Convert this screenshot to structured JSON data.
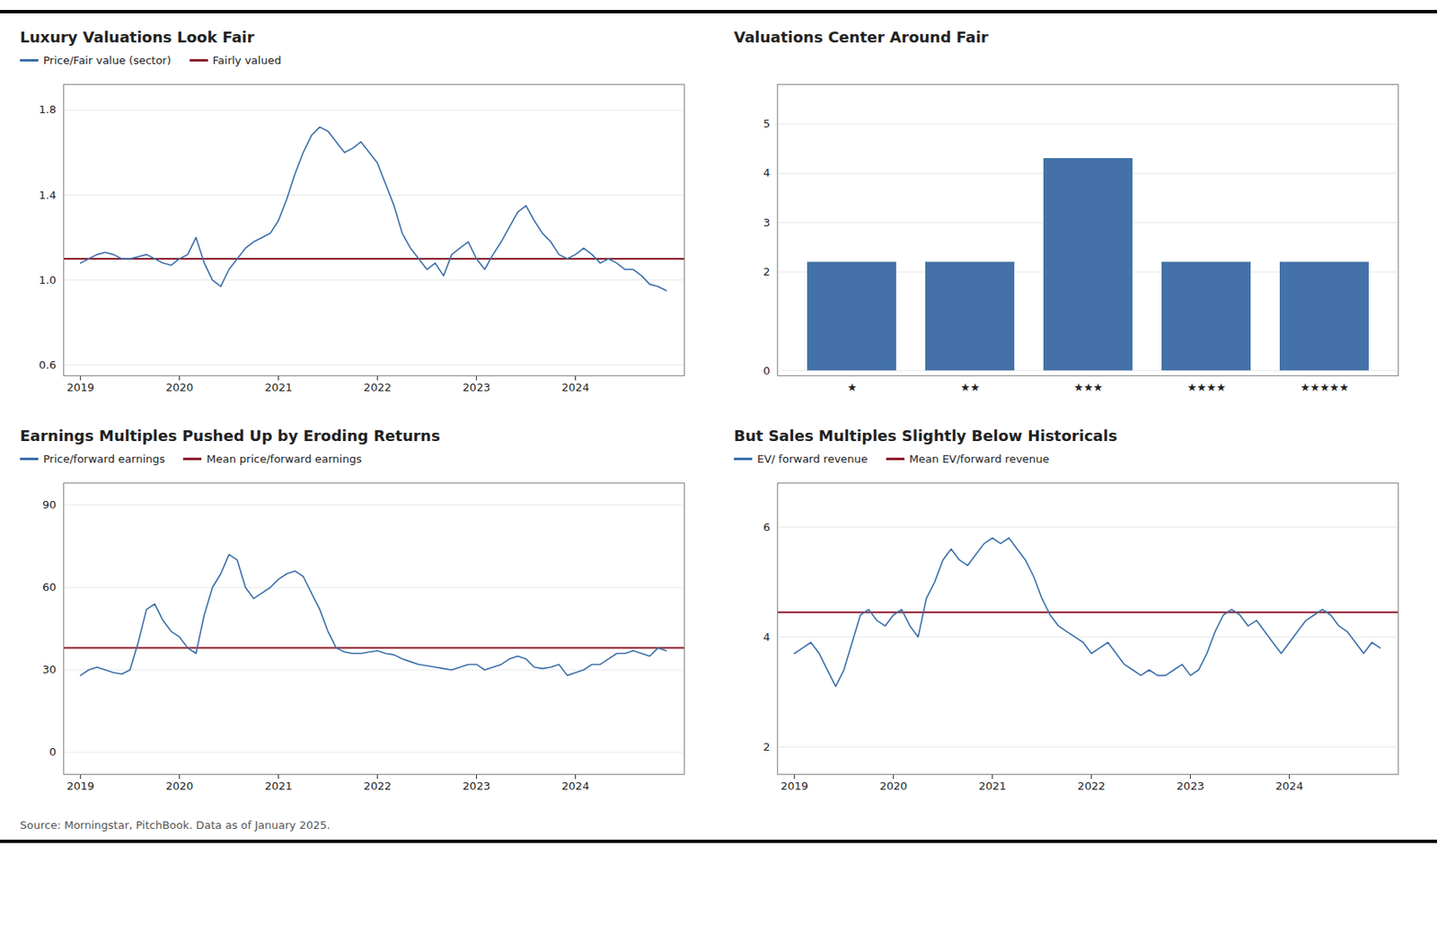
{
  "caption": "Source: Morningstar, PitchBook. Data as of January 2025.",
  "chart_data": [
    {
      "type": "line",
      "title": "Luxury Valuations Look Fair",
      "legend": "top",
      "grid": true,
      "xlim": [
        2018.83,
        2025.1
      ],
      "xticks": [
        2019,
        2020,
        2021,
        2022,
        2023,
        2024
      ],
      "ylim": [
        0.55,
        1.92
      ],
      "yticks": [
        0.6,
        {
          "value": 1.0,
          "label": "1.0"
        },
        1.4,
        1.8
      ],
      "x": [
        2019.0,
        2019.083,
        2019.167,
        2019.25,
        2019.333,
        2019.417,
        2019.5,
        2019.583,
        2019.667,
        2019.75,
        2019.833,
        2019.917,
        2020.0,
        2020.083,
        2020.167,
        2020.25,
        2020.333,
        2020.417,
        2020.5,
        2020.583,
        2020.667,
        2020.75,
        2020.833,
        2020.917,
        2021.0,
        2021.083,
        2021.167,
        2021.25,
        2021.333,
        2021.417,
        2021.5,
        2021.583,
        2021.667,
        2021.75,
        2021.833,
        2021.917,
        2022.0,
        2022.083,
        2022.167,
        2022.25,
        2022.333,
        2022.417,
        2022.5,
        2022.583,
        2022.667,
        2022.75,
        2022.833,
        2022.917,
        2023.0,
        2023.083,
        2023.167,
        2023.25,
        2023.333,
        2023.417,
        2023.5,
        2023.583,
        2023.667,
        2023.75,
        2023.833,
        2023.917,
        2024.0,
        2024.083,
        2024.167,
        2024.25,
        2024.333,
        2024.417,
        2024.5,
        2024.583,
        2024.667,
        2024.75,
        2024.833,
        2024.917
      ],
      "series": [
        {
          "name": "Price/Fair value (sector)",
          "color": "#3a6ea8",
          "values": [
            1.08,
            1.1,
            1.12,
            1.13,
            1.12,
            1.1,
            1.1,
            1.11,
            1.12,
            1.1,
            1.08,
            1.07,
            1.1,
            1.12,
            1.2,
            1.08,
            1.0,
            0.97,
            1.05,
            1.1,
            1.15,
            1.18,
            1.2,
            1.22,
            1.28,
            1.38,
            1.5,
            1.6,
            1.68,
            1.72,
            1.7,
            1.65,
            1.6,
            1.62,
            1.65,
            1.6,
            1.55,
            1.45,
            1.35,
            1.22,
            1.15,
            1.1,
            1.05,
            1.08,
            1.02,
            1.12,
            1.15,
            1.18,
            1.1,
            1.05,
            1.12,
            1.18,
            1.25,
            1.32,
            1.35,
            1.28,
            1.22,
            1.18,
            1.12,
            1.1,
            1.12,
            1.15,
            1.12,
            1.08,
            1.1,
            1.08,
            1.05,
            1.05,
            1.02,
            0.98,
            0.97,
            0.95
          ]
        },
        {
          "name": "Fairly valued",
          "color": "#8b1a2a",
          "type": "rule",
          "value": 1.1
        }
      ]
    },
    {
      "type": "bar",
      "title": "Valuations Center Around Fair",
      "grid": true,
      "color": "#4472a8",
      "categories": [
        "★",
        "★★",
        "★★★",
        "★★★★",
        "★★★★★"
      ],
      "values": [
        2.2,
        2.2,
        4.3,
        2.2,
        2.2
      ],
      "ylim": [
        -0.1,
        5.8
      ],
      "yticks": [
        0,
        2,
        3,
        4,
        5
      ]
    },
    {
      "type": "line",
      "title": "Earnings Multiples Pushed Up by Eroding Returns",
      "legend": "top",
      "grid": true,
      "xlim": [
        2018.83,
        2025.1
      ],
      "xticks": [
        2019,
        2020,
        2021,
        2022,
        2023,
        2024
      ],
      "ylim": [
        -8,
        98
      ],
      "yticks": [
        0,
        30,
        60,
        90
      ],
      "x": [
        2019.0,
        2019.083,
        2019.167,
        2019.25,
        2019.333,
        2019.417,
        2019.5,
        2019.583,
        2019.667,
        2019.75,
        2019.833,
        2019.917,
        2020.0,
        2020.083,
        2020.167,
        2020.25,
        2020.333,
        2020.417,
        2020.5,
        2020.583,
        2020.667,
        2020.75,
        2020.833,
        2020.917,
        2021.0,
        2021.083,
        2021.167,
        2021.25,
        2021.333,
        2021.417,
        2021.5,
        2021.583,
        2021.667,
        2021.75,
        2021.833,
        2021.917,
        2022.0,
        2022.083,
        2022.167,
        2022.25,
        2022.333,
        2022.417,
        2022.5,
        2022.583,
        2022.667,
        2022.75,
        2022.833,
        2022.917,
        2023.0,
        2023.083,
        2023.167,
        2023.25,
        2023.333,
        2023.417,
        2023.5,
        2023.583,
        2023.667,
        2023.75,
        2023.833,
        2023.917,
        2024.0,
        2024.083,
        2024.167,
        2024.25,
        2024.333,
        2024.417,
        2024.5,
        2024.583,
        2024.667,
        2024.75,
        2024.833,
        2024.917
      ],
      "series": [
        {
          "name": "Price/forward earnings",
          "color": "#3a6ea8",
          "values": [
            28.0,
            30.0,
            31.0,
            30.0,
            29.0,
            28.5,
            30.0,
            40.0,
            52.0,
            54.0,
            48.0,
            44.0,
            42.0,
            38.0,
            36.0,
            50.0,
            60.0,
            65.0,
            72.0,
            70.0,
            60.0,
            56.0,
            58.0,
            60.0,
            63.0,
            65.0,
            66.0,
            64.0,
            58.0,
            52.0,
            44.0,
            38.0,
            36.5,
            36.0,
            36.0,
            36.5,
            37.0,
            36.0,
            35.5,
            34.0,
            33.0,
            32.0,
            31.5,
            31.0,
            30.5,
            30.0,
            31.0,
            32.0,
            32.0,
            30.0,
            31.0,
            32.0,
            34.0,
            35.0,
            34.0,
            31.0,
            30.5,
            31.0,
            32.0,
            28.0,
            29.0,
            30.0,
            32.0,
            32.0,
            34.0,
            36.0,
            36.0,
            37.0,
            36.0,
            35.0,
            38.0,
            37.0
          ]
        },
        {
          "name": "Mean price/forward earnings",
          "color": "#8b1a2a",
          "type": "rule",
          "value": 38.0
        }
      ]
    },
    {
      "type": "line",
      "title": "But Sales Multiples Slightly Below Historicals",
      "legend": "top",
      "grid": true,
      "xlim": [
        2018.83,
        2025.1
      ],
      "xticks": [
        2019,
        2020,
        2021,
        2022,
        2023,
        2024
      ],
      "ylim": [
        1.5,
        6.8
      ],
      "yticks": [
        2,
        4,
        6
      ],
      "x": [
        2019.0,
        2019.083,
        2019.167,
        2019.25,
        2019.333,
        2019.417,
        2019.5,
        2019.583,
        2019.667,
        2019.75,
        2019.833,
        2019.917,
        2020.0,
        2020.083,
        2020.167,
        2020.25,
        2020.333,
        2020.417,
        2020.5,
        2020.583,
        2020.667,
        2020.75,
        2020.833,
        2020.917,
        2021.0,
        2021.083,
        2021.167,
        2021.25,
        2021.333,
        2021.417,
        2021.5,
        2021.583,
        2021.667,
        2021.75,
        2021.833,
        2021.917,
        2022.0,
        2022.083,
        2022.167,
        2022.25,
        2022.333,
        2022.417,
        2022.5,
        2022.583,
        2022.667,
        2022.75,
        2022.833,
        2022.917,
        2023.0,
        2023.083,
        2023.167,
        2023.25,
        2023.333,
        2023.417,
        2023.5,
        2023.583,
        2023.667,
        2023.75,
        2023.833,
        2023.917,
        2024.0,
        2024.083,
        2024.167,
        2024.25,
        2024.333,
        2024.417,
        2024.5,
        2024.583,
        2024.667,
        2024.75,
        2024.833,
        2024.917
      ],
      "series": [
        {
          "name": "EV/ forward revenue",
          "color": "#3a6ea8",
          "values": [
            3.7,
            3.8,
            3.9,
            3.7,
            3.4,
            3.1,
            3.4,
            3.9,
            4.4,
            4.5,
            4.3,
            4.2,
            4.4,
            4.5,
            4.2,
            4.0,
            4.7,
            5.0,
            5.4,
            5.6,
            5.4,
            5.3,
            5.5,
            5.7,
            5.8,
            5.7,
            5.8,
            5.6,
            5.4,
            5.1,
            4.7,
            4.4,
            4.2,
            4.1,
            4.0,
            3.9,
            3.7,
            3.8,
            3.9,
            3.7,
            3.5,
            3.4,
            3.3,
            3.4,
            3.3,
            3.3,
            3.4,
            3.5,
            3.3,
            3.4,
            3.7,
            4.1,
            4.4,
            4.5,
            4.4,
            4.2,
            4.3,
            4.1,
            3.9,
            3.7,
            3.9,
            4.1,
            4.3,
            4.4,
            4.5,
            4.4,
            4.2,
            4.1,
            3.9,
            3.7,
            3.9,
            3.8
          ]
        },
        {
          "name": "Mean EV/forward revenue",
          "color": "#8b1a2a",
          "type": "rule",
          "value": 4.45
        }
      ]
    }
  ]
}
